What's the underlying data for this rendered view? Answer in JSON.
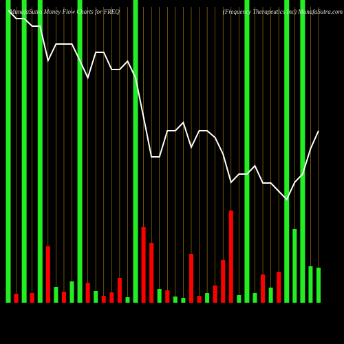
{
  "chart_data": {
    "type": "money-flow",
    "title": "MunafaSutra  Money Flow  Charts for FREQ",
    "subtitle": "(Frequency Therapeutics Inc) MunafaSutra.com",
    "ylim": [
      0,
      430
    ],
    "highlight_color": "#22ee22",
    "highlights": [
      0,
      2,
      4,
      9,
      16,
      30,
      35,
      37
    ],
    "bars": {
      "values": [
        null,
        13,
        null,
        14,
        null,
        82,
        23,
        16,
        31,
        null,
        29,
        17,
        10,
        15,
        36,
        8,
        null,
        110,
        87,
        20,
        18,
        9,
        7,
        71,
        10,
        14,
        25,
        62,
        134,
        11,
        null,
        14,
        41,
        22,
        45,
        null,
        107,
        null,
        53,
        51
      ],
      "colors": [
        null,
        "#ff0000",
        null,
        "#ff0000",
        null,
        "#ff0000",
        "#22ee22",
        "#ff0000",
        "#22ee22",
        null,
        "#ff0000",
        "#22ee22",
        "#ff0000",
        "#ff0000",
        "#ff0000",
        "#22ee22",
        null,
        "#ff0000",
        "#ff0000",
        "#22ee22",
        "#ff0000",
        "#22ee22",
        "#22ee22",
        "#ff0000",
        "#ff0000",
        "#22ee22",
        "#ff0000",
        "#ff0000",
        "#ff0000",
        "#22ee22",
        null,
        "#22ee22",
        "#ff0000",
        "#22ee22",
        "#ff0000",
        null,
        "#22ee22",
        null,
        "#22ee22",
        "#22ee22"
      ]
    },
    "line": {
      "color": "#ffffff",
      "values": [
        425,
        413,
        413,
        402,
        402,
        352,
        376,
        376,
        376,
        352,
        327,
        364,
        364,
        339,
        339,
        351,
        327,
        270,
        212,
        212,
        250,
        250,
        262,
        226,
        250,
        250,
        240,
        216,
        175,
        187,
        187,
        199,
        174,
        174,
        162,
        150,
        175,
        187,
        224,
        250
      ]
    },
    "grid_color": "#b8860b"
  }
}
